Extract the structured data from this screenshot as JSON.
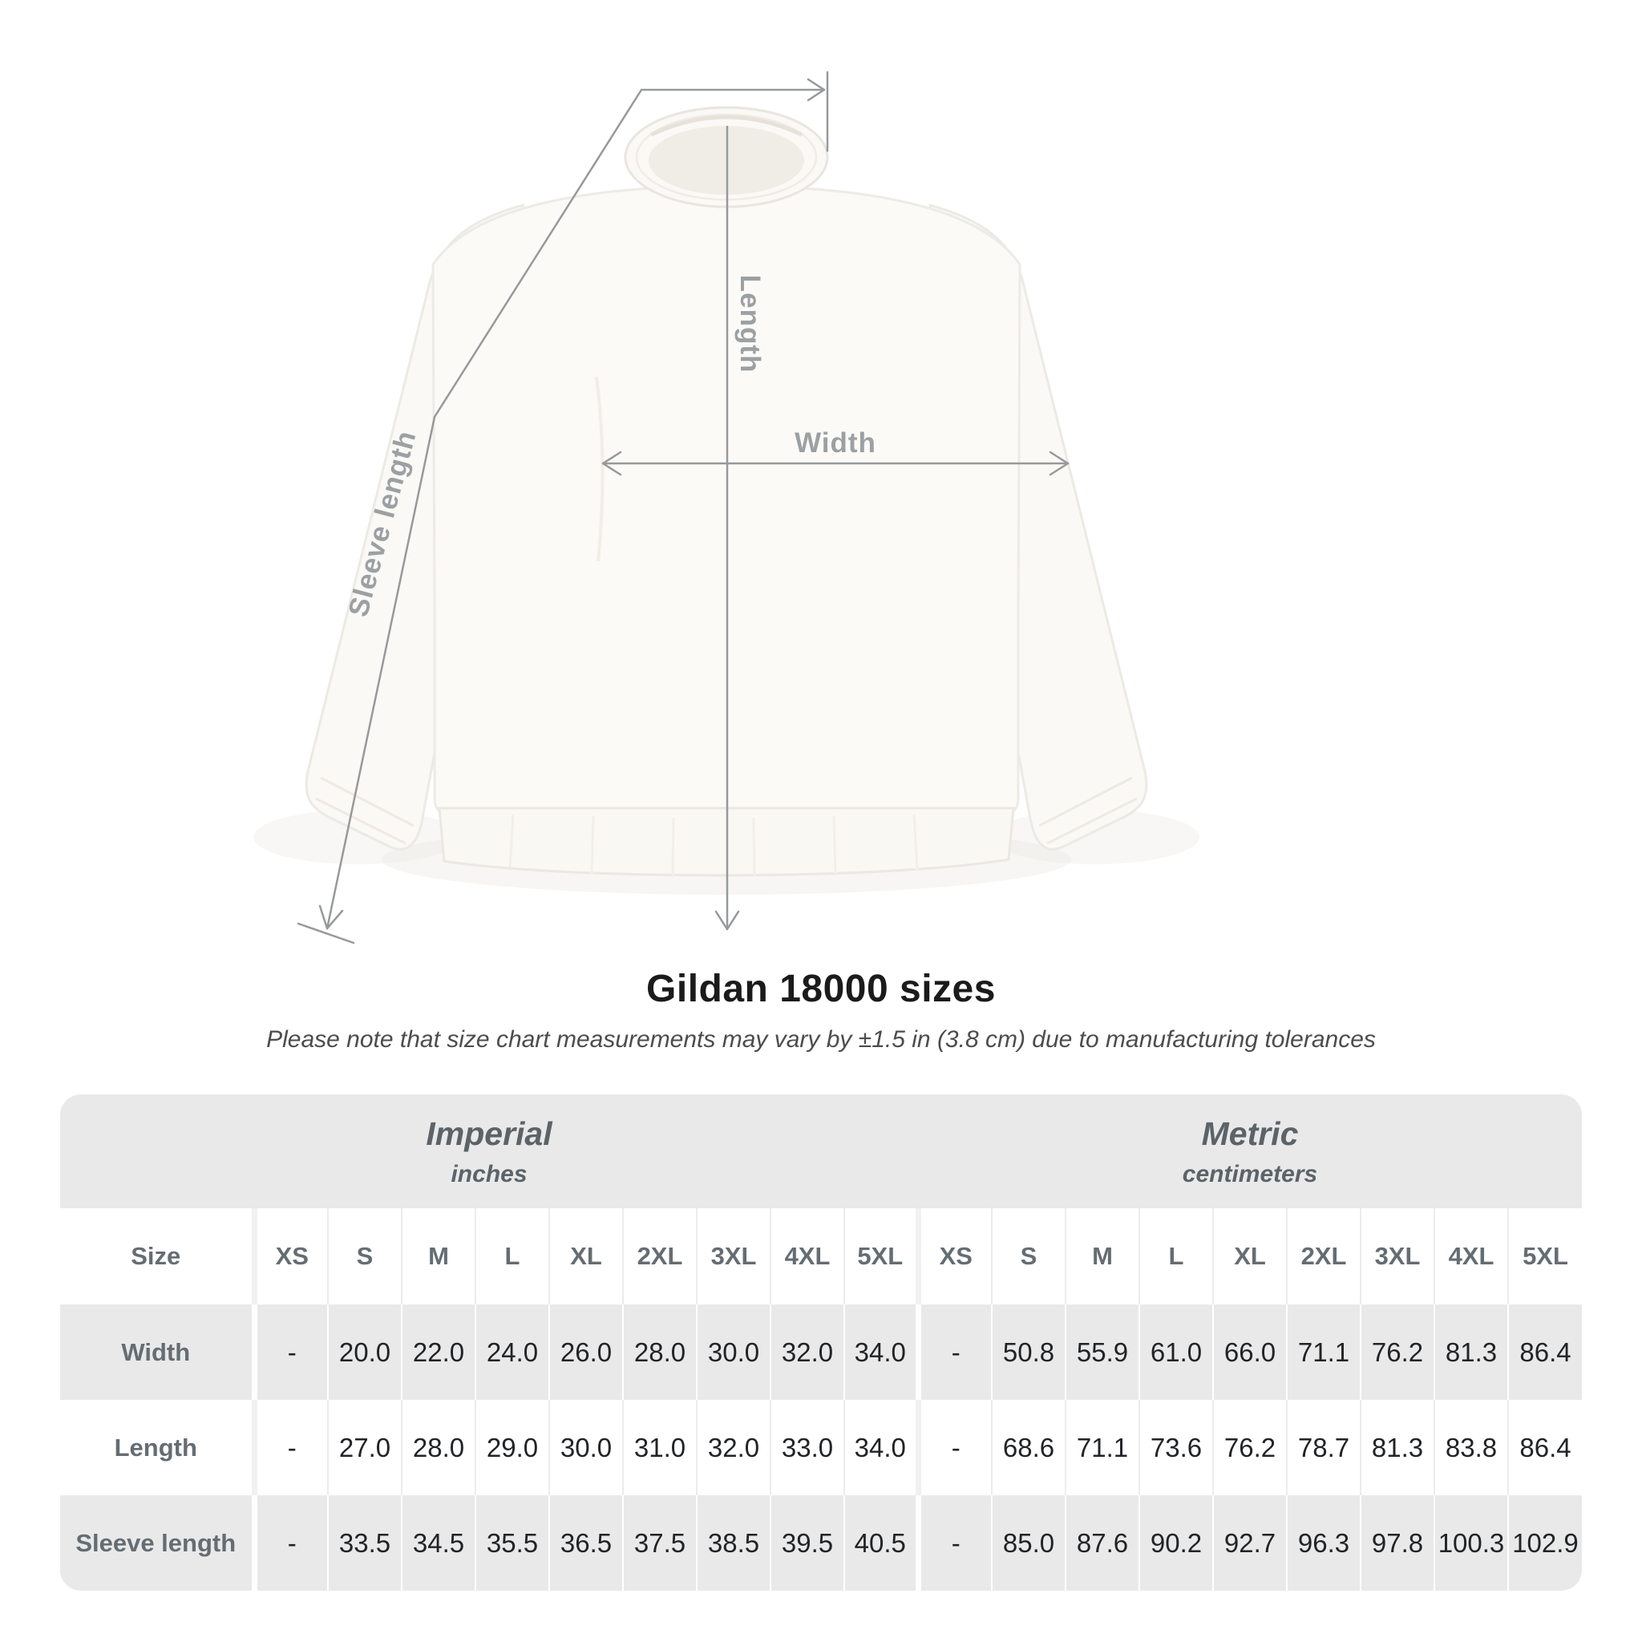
{
  "title": "Gildan 18000 sizes",
  "subtitle": "Please note that size chart measurements may vary by ±1.5 in (3.8 cm) due to manufacturing tolerances",
  "diagram": {
    "length_label": "Length",
    "width_label": "Width",
    "sleeve_label": "Sleeve length"
  },
  "table": {
    "size_header": "Size",
    "unit_groups": [
      {
        "label": "Imperial",
        "sublabel": "inches"
      },
      {
        "label": "Metric",
        "sublabel": "centimeters"
      }
    ],
    "sizes": [
      "XS",
      "S",
      "M",
      "L",
      "XL",
      "2XL",
      "3XL",
      "4XL",
      "5XL"
    ],
    "rows": [
      {
        "label": "Width",
        "imperial": [
          "-",
          "20.0",
          "22.0",
          "24.0",
          "26.0",
          "28.0",
          "30.0",
          "32.0",
          "34.0"
        ],
        "metric": [
          "-",
          "50.8",
          "55.9",
          "61.0",
          "66.0",
          "71.1",
          "76.2",
          "81.3",
          "86.4"
        ]
      },
      {
        "label": "Length",
        "imperial": [
          "-",
          "27.0",
          "28.0",
          "29.0",
          "30.0",
          "31.0",
          "32.0",
          "33.0",
          "34.0"
        ],
        "metric": [
          "-",
          "68.6",
          "71.1",
          "73.6",
          "76.2",
          "78.7",
          "81.3",
          "83.8",
          "86.4"
        ]
      },
      {
        "label": "Sleeve length",
        "imperial": [
          "-",
          "33.5",
          "34.5",
          "35.5",
          "36.5",
          "37.5",
          "38.5",
          "39.5",
          "40.5"
        ],
        "metric": [
          "-",
          "85.0",
          "87.6",
          "90.2",
          "92.7",
          "96.3",
          "97.8",
          "100.3",
          "102.9"
        ]
      }
    ]
  },
  "chart_data": {
    "type": "table",
    "title": "Gildan 18000 sizes",
    "note": "Please note that size chart measurements may vary by ±1.5 in (3.8 cm) due to manufacturing tolerances",
    "column_groups": [
      "Imperial (inches)",
      "Metric (centimeters)"
    ],
    "columns": [
      "XS",
      "S",
      "M",
      "L",
      "XL",
      "2XL",
      "3XL",
      "4XL",
      "5XL"
    ],
    "rows": [
      {
        "measure": "Width",
        "imperial_in": [
          null,
          20.0,
          22.0,
          24.0,
          26.0,
          28.0,
          30.0,
          32.0,
          34.0
        ],
        "metric_cm": [
          null,
          50.8,
          55.9,
          61.0,
          66.0,
          71.1,
          76.2,
          81.3,
          86.4
        ]
      },
      {
        "measure": "Length",
        "imperial_in": [
          null,
          27.0,
          28.0,
          29.0,
          30.0,
          31.0,
          32.0,
          33.0,
          34.0
        ],
        "metric_cm": [
          null,
          68.6,
          71.1,
          73.6,
          76.2,
          78.7,
          81.3,
          83.8,
          86.4
        ]
      },
      {
        "measure": "Sleeve length",
        "imperial_in": [
          null,
          33.5,
          34.5,
          35.5,
          36.5,
          37.5,
          38.5,
          39.5,
          40.5
        ],
        "metric_cm": [
          null,
          85.0,
          87.6,
          90.2,
          92.7,
          96.3,
          97.8,
          100.3,
          102.9
        ]
      }
    ]
  },
  "colors": {
    "row_gray": "#e9e9e9",
    "unit_header_text": "#5c6368",
    "size_label_text": "#656d73",
    "value_text": "#212326",
    "measure_line": "#97999b",
    "measure_label": "#9ba0a3",
    "title_text": "#1b1b1b",
    "subtitle_text": "#4c4c4c"
  }
}
